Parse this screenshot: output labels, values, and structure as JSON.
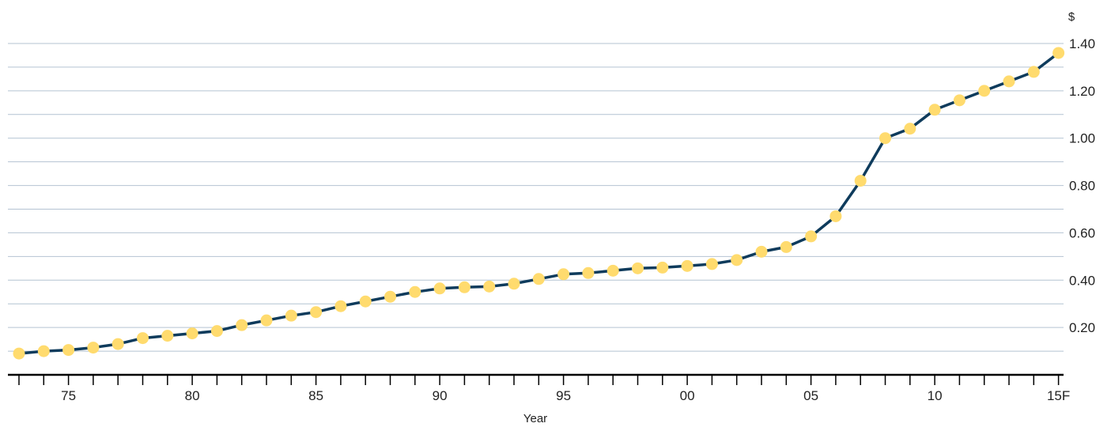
{
  "chart_data": {
    "type": "line",
    "title": "",
    "xlabel": "Year",
    "ylabel": "$",
    "ylim": [
      0,
      1.4
    ],
    "grid": true,
    "y_ticks": [
      {
        "value": 1.4,
        "label": "1.40"
      },
      {
        "value": 1.2,
        "label": "1.20"
      },
      {
        "value": 1.0,
        "label": "1.00"
      },
      {
        "value": 0.8,
        "label": "0.80"
      },
      {
        "value": 0.6,
        "label": "0.60"
      },
      {
        "value": 0.4,
        "label": "0.40"
      },
      {
        "value": 0.2,
        "label": "0.20"
      }
    ],
    "x_tick_labels": [
      {
        "year": 1975,
        "label": "75"
      },
      {
        "year": 1980,
        "label": "80"
      },
      {
        "year": 1985,
        "label": "85"
      },
      {
        "year": 1990,
        "label": "90"
      },
      {
        "year": 1995,
        "label": "95"
      },
      {
        "year": 2000,
        "label": "00"
      },
      {
        "year": 2005,
        "label": "05"
      },
      {
        "year": 2010,
        "label": "10"
      },
      {
        "year": 2015,
        "label": "15F"
      }
    ],
    "x": [
      1973,
      1974,
      1975,
      1976,
      1977,
      1978,
      1979,
      1980,
      1981,
      1982,
      1983,
      1984,
      1985,
      1986,
      1987,
      1988,
      1989,
      1990,
      1991,
      1992,
      1993,
      1994,
      1995,
      1996,
      1997,
      1998,
      1999,
      2000,
      2001,
      2002,
      2003,
      2004,
      2005,
      2006,
      2007,
      2008,
      2009,
      2010,
      2011,
      2012,
      2013,
      2014,
      2015
    ],
    "series": [
      {
        "values": [
          0.09,
          0.1,
          0.105,
          0.115,
          0.13,
          0.155,
          0.165,
          0.175,
          0.185,
          0.21,
          0.23,
          0.25,
          0.265,
          0.29,
          0.31,
          0.33,
          0.35,
          0.365,
          0.37,
          0.373,
          0.385,
          0.405,
          0.425,
          0.43,
          0.44,
          0.45,
          0.453,
          0.46,
          0.468,
          0.485,
          0.52,
          0.54,
          0.585,
          0.67,
          0.82,
          1.0,
          1.04,
          1.12,
          1.16,
          1.2,
          1.24,
          1.28,
          1.36
        ]
      }
    ],
    "colors": {
      "line": "#0e3b5c",
      "marker": "#ffdb6e",
      "grid": "#b4c3d2",
      "axis": "#000000"
    }
  }
}
